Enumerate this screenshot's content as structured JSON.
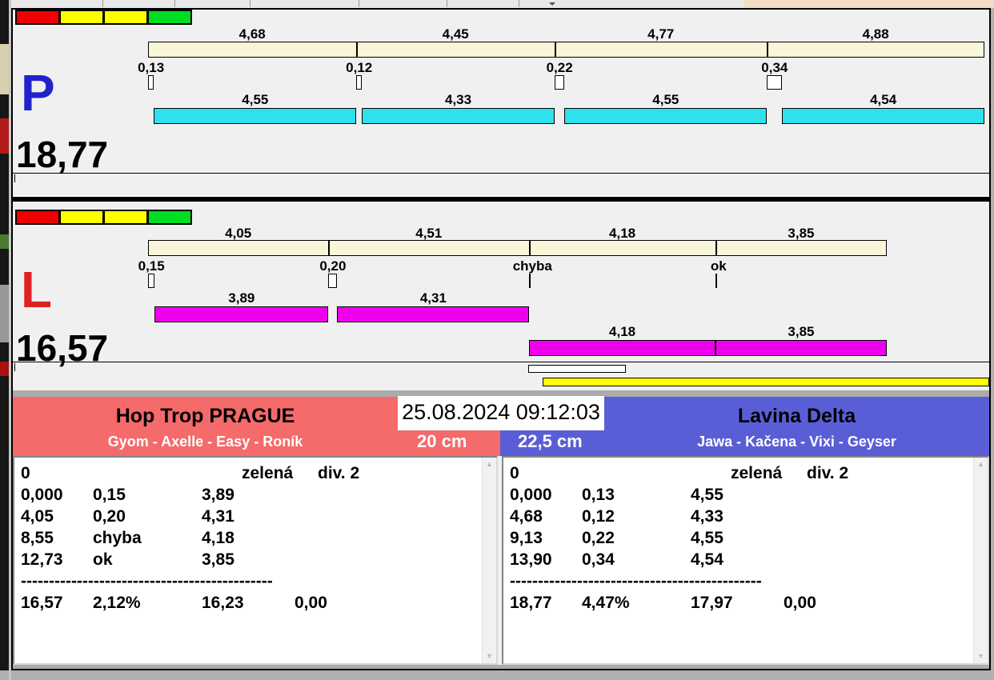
{
  "panels": [
    {
      "id": "P",
      "letter": "P",
      "letter_color": "#2222cc",
      "total": "18,77",
      "run_bar_color": "#2fe1ed",
      "split_bar_color": "#f8f5d8",
      "lights": [
        "#ee0000",
        "#ffff00",
        "#ffff00",
        "#00dd22"
      ],
      "dogs": [
        {
          "split_label": "4,68",
          "split_s": 4.68,
          "box_label": "0,13",
          "box_s": 0.13,
          "box_type": "box",
          "run_label": "4,55",
          "row": 1
        },
        {
          "split_label": "4,45",
          "split_s": 4.45,
          "box_label": "0,12",
          "box_s": 0.12,
          "box_type": "box",
          "run_label": "4,33",
          "row": 1
        },
        {
          "split_label": "4,77",
          "split_s": 4.77,
          "box_label": "0,22",
          "box_s": 0.22,
          "box_type": "box",
          "run_label": "4,55",
          "row": 1
        },
        {
          "split_label": "4,88",
          "split_s": 4.88,
          "box_label": "0,34",
          "box_s": 0.34,
          "box_type": "box",
          "run_label": "4,54",
          "row": 1
        }
      ]
    },
    {
      "id": "L",
      "letter": "L",
      "letter_color": "#dd2222",
      "total": "16,57",
      "run_bar_color": "#ee00ee",
      "split_bar_color": "#f8f5d8",
      "lights": [
        "#ee0000",
        "#ffff00",
        "#ffff00",
        "#00dd22"
      ],
      "dogs": [
        {
          "split_label": "4,05",
          "split_s": 4.05,
          "box_label": "0,15",
          "box_s": 0.15,
          "box_type": "box",
          "run_label": "3,89",
          "row": 1
        },
        {
          "split_label": "4,51",
          "split_s": 4.51,
          "box_label": "0,20",
          "box_s": 0.2,
          "box_type": "box",
          "run_label": "4,31",
          "row": 1
        },
        {
          "split_label": "4,18",
          "split_s": 4.18,
          "box_label": "chyba",
          "box_s": 0,
          "box_type": "mark",
          "run_label": "4,18",
          "row": 2
        },
        {
          "split_label": "3,85",
          "split_s": 3.85,
          "box_label": "ok",
          "box_s": 0,
          "box_type": "mark",
          "run_label": "3,85",
          "row": 2
        }
      ]
    }
  ],
  "scoreboard": {
    "datetime": "25.08.2024 09:12:03",
    "left_team": {
      "name": "Hop Trop PRAGUE",
      "dogs": "Gyom - Axelle - Easy - Roník",
      "height": "20 cm",
      "color": "#f56a6a"
    },
    "right_team": {
      "name": "Lavina Delta",
      "dogs": "Jawa - Kačena - Vixi - Geyser",
      "height": "22,5 cm",
      "color": "#5a5ed6"
    }
  },
  "results": {
    "left": {
      "header": [
        "0",
        "zelená",
        "div. 2"
      ],
      "rows": [
        [
          "0,000",
          "0,15",
          "3,89"
        ],
        [
          "4,05",
          "0,20",
          "4,31"
        ],
        [
          "8,55",
          "chyba",
          "4,18"
        ],
        [
          "12,73",
          "ok",
          "3,85"
        ]
      ],
      "separator": "---------------------------------------------",
      "totals": [
        "16,57",
        "2,12%",
        "16,23",
        "0,00"
      ]
    },
    "right": {
      "header": [
        "0",
        "zelená",
        "div. 2"
      ],
      "rows": [
        [
          "0,000",
          "0,13",
          "4,55"
        ],
        [
          "4,68",
          "0,12",
          "4,33"
        ],
        [
          "9,13",
          "0,22",
          "4,55"
        ],
        [
          "13,90",
          "0,34",
          "4,54"
        ]
      ],
      "separator": "---------------------------------------------",
      "totals": [
        "18,77",
        "4,47%",
        "17,97",
        "0,00"
      ]
    }
  }
}
